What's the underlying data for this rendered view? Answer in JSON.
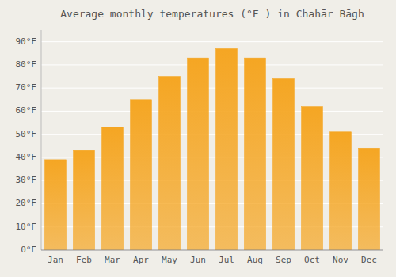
{
  "chart_data": {
    "type": "bar",
    "title": "Average monthly temperatures (°F ) in Chahār Bāgh",
    "categories": [
      "Jan",
      "Feb",
      "Mar",
      "Apr",
      "May",
      "Jun",
      "Jul",
      "Aug",
      "Sep",
      "Oct",
      "Nov",
      "Dec"
    ],
    "values": [
      39,
      43,
      53,
      65,
      75,
      83,
      87,
      83,
      74,
      62,
      51,
      44
    ],
    "color": "#F5A623",
    "ylim": [
      0,
      95
    ],
    "yticks": [
      {
        "value": 0,
        "label": "0°F"
      },
      {
        "value": 10,
        "label": "10°F"
      },
      {
        "value": 20,
        "label": "20°F"
      },
      {
        "value": 30,
        "label": "30°F"
      },
      {
        "value": 40,
        "label": "40°F"
      },
      {
        "value": 50,
        "label": "50°F"
      },
      {
        "value": 60,
        "label": "60°F"
      },
      {
        "value": 70,
        "label": "70°F"
      },
      {
        "value": 80,
        "label": "80°F"
      },
      {
        "value": 90,
        "label": "90°F"
      }
    ],
    "grid": true
  }
}
